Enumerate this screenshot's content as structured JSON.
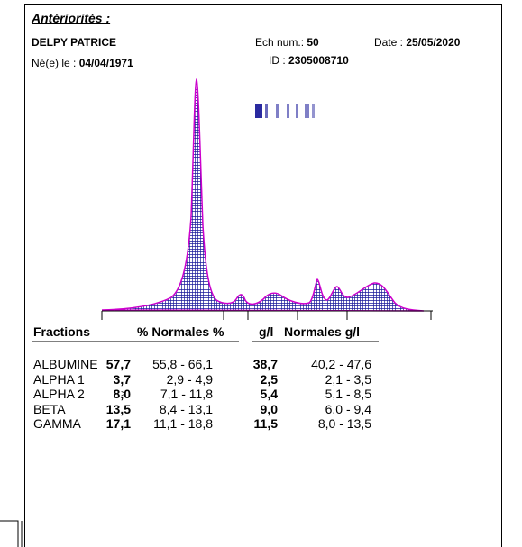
{
  "header": {
    "section_title": "Antériorités :",
    "patient_name": "DELPY PATRICE",
    "sample_label": "Ech num.:",
    "sample_number": "50",
    "date_label": "Date :",
    "date": "25/05/2020",
    "birth_label": "Né(e) le :",
    "birth_date": "04/04/1971",
    "id_label": "ID :",
    "id": "2305008710"
  },
  "table": {
    "headers": [
      "Fractions",
      "% Normales %",
      "g/l",
      "Normales g/l"
    ],
    "rows": [
      {
        "name": "ALBUMINE",
        "pct": "57,7",
        "pct_flag": "",
        "pct_range": "55,8 - 66,1",
        "gl": "38,7",
        "gl_range": "40,2 - 47,6"
      },
      {
        "name": "ALPHA 1",
        "pct": "3,7",
        "pct_flag": "",
        "pct_range": "2,9 - 4,9",
        "gl": "2,5",
        "gl_range": "2,1 - 3,5"
      },
      {
        "name": "ALPHA 2",
        "pct": "8,0",
        "pct_flag": ">",
        "pct_range": "7,1 - 11,8",
        "gl": "5,4",
        "gl_range": "5,1 - 8,5"
      },
      {
        "name": "BETA",
        "pct": "13,5",
        "pct_flag": "",
        "pct_range": "8,4 - 13,1",
        "gl": "9,0",
        "gl_range": "6,0 - 9,4"
      },
      {
        "name": "GAMMA",
        "pct": "17,1",
        "pct_flag": "",
        "pct_range": "11,1 - 18,8",
        "gl": "11,5",
        "gl_range": "8,0 - 13,5"
      }
    ]
  }
}
